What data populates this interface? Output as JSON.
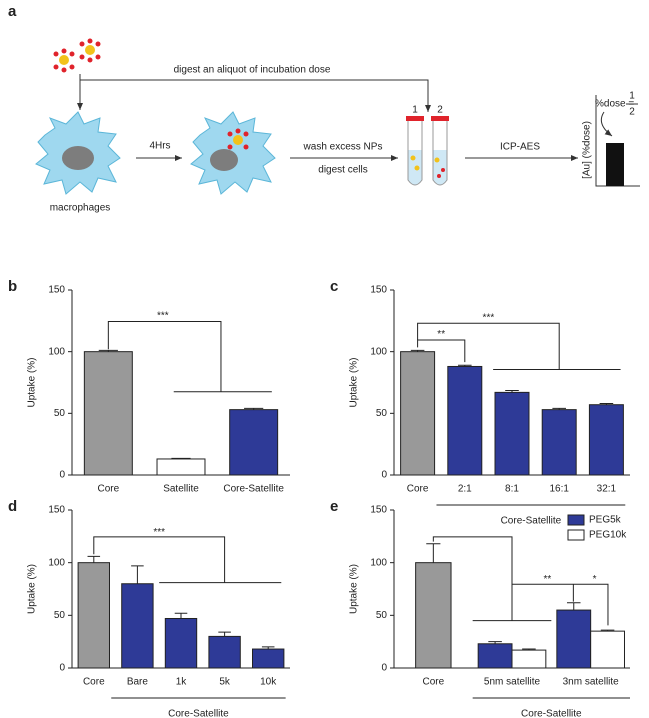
{
  "schematic": {
    "panel": "a",
    "top_label": "digest an aliquot of incubation dose",
    "cell_label": "macrophages",
    "step1": "4Hrs",
    "step2_line1": "wash excess NPs",
    "step2_line2": "digest cells",
    "tube1": "1",
    "tube2": "2",
    "step3": "ICP-AES",
    "dose_label": "%dose =",
    "frac_num": "1",
    "frac_den": "2",
    "axis_label": "[Au] (%dose)"
  },
  "chart_data": [
    {
      "type": "bar",
      "panel": "b",
      "ylabel": "Uptake  (%)",
      "categories": [
        "Core",
        "Satellite",
        "Core-Satellite"
      ],
      "series": [
        {
          "values": [
            100,
            13,
            53
          ],
          "errors": [
            1,
            0.5,
            1
          ],
          "colors": [
            "#999999",
            "#ffffff",
            "#2e3a97"
          ]
        }
      ],
      "ylim": [
        0,
        150
      ],
      "yticks": [
        0,
        50,
        100,
        150
      ],
      "annotations": [
        "***"
      ]
    },
    {
      "type": "bar",
      "panel": "c",
      "ylabel": "Uptake (%)",
      "categories": [
        "Core",
        "2:1",
        "8:1",
        "16:1",
        "32:1"
      ],
      "series": [
        {
          "values": [
            100,
            88,
            67,
            53,
            57
          ],
          "errors": [
            1,
            1,
            1.5,
            1,
            1
          ],
          "colors": [
            "#999999",
            "#2e3a97",
            "#2e3a97",
            "#2e3a97",
            "#2e3a97"
          ]
        }
      ],
      "ylim": [
        0,
        150
      ],
      "yticks": [
        0,
        50,
        100,
        150
      ],
      "annotations": [
        "**",
        "***"
      ],
      "group_label": "Core-Satellite"
    },
    {
      "type": "bar",
      "panel": "d",
      "ylabel": "Uptake (%)",
      "categories": [
        "Core",
        "Bare",
        "1k",
        "5k",
        "10k"
      ],
      "series": [
        {
          "values": [
            100,
            80,
            47,
            30,
            18
          ],
          "errors": [
            6,
            17,
            5,
            4,
            2
          ],
          "colors": [
            "#999999",
            "#2e3a97",
            "#2e3a97",
            "#2e3a97",
            "#2e3a97"
          ]
        }
      ],
      "ylim": [
        0,
        150
      ],
      "yticks": [
        0,
        50,
        100,
        150
      ],
      "annotations": [
        "***"
      ],
      "group_label": "Core-Satellite"
    },
    {
      "type": "bar",
      "panel": "e",
      "ylabel": "Uptake (%)",
      "categories": [
        "Core",
        "5nm satellite",
        "3nm satellite"
      ],
      "series": [
        {
          "color": "#999999",
          "values": [
            100,
            null,
            null
          ],
          "errors": [
            18,
            null,
            null
          ]
        },
        {
          "name": "PEG5k",
          "color": "#2e3a97",
          "values": [
            null,
            23,
            55
          ],
          "errors": [
            null,
            2,
            7
          ]
        },
        {
          "name": "PEG10k",
          "color": "#ffffff",
          "values": [
            null,
            17,
            35
          ],
          "errors": [
            null,
            1,
            1
          ]
        }
      ],
      "ylim": [
        0,
        150
      ],
      "yticks": [
        0,
        50,
        100,
        150
      ],
      "annotations": [
        "**",
        "*"
      ],
      "group_label": "Core-Satellite",
      "legend": "upper right"
    }
  ]
}
